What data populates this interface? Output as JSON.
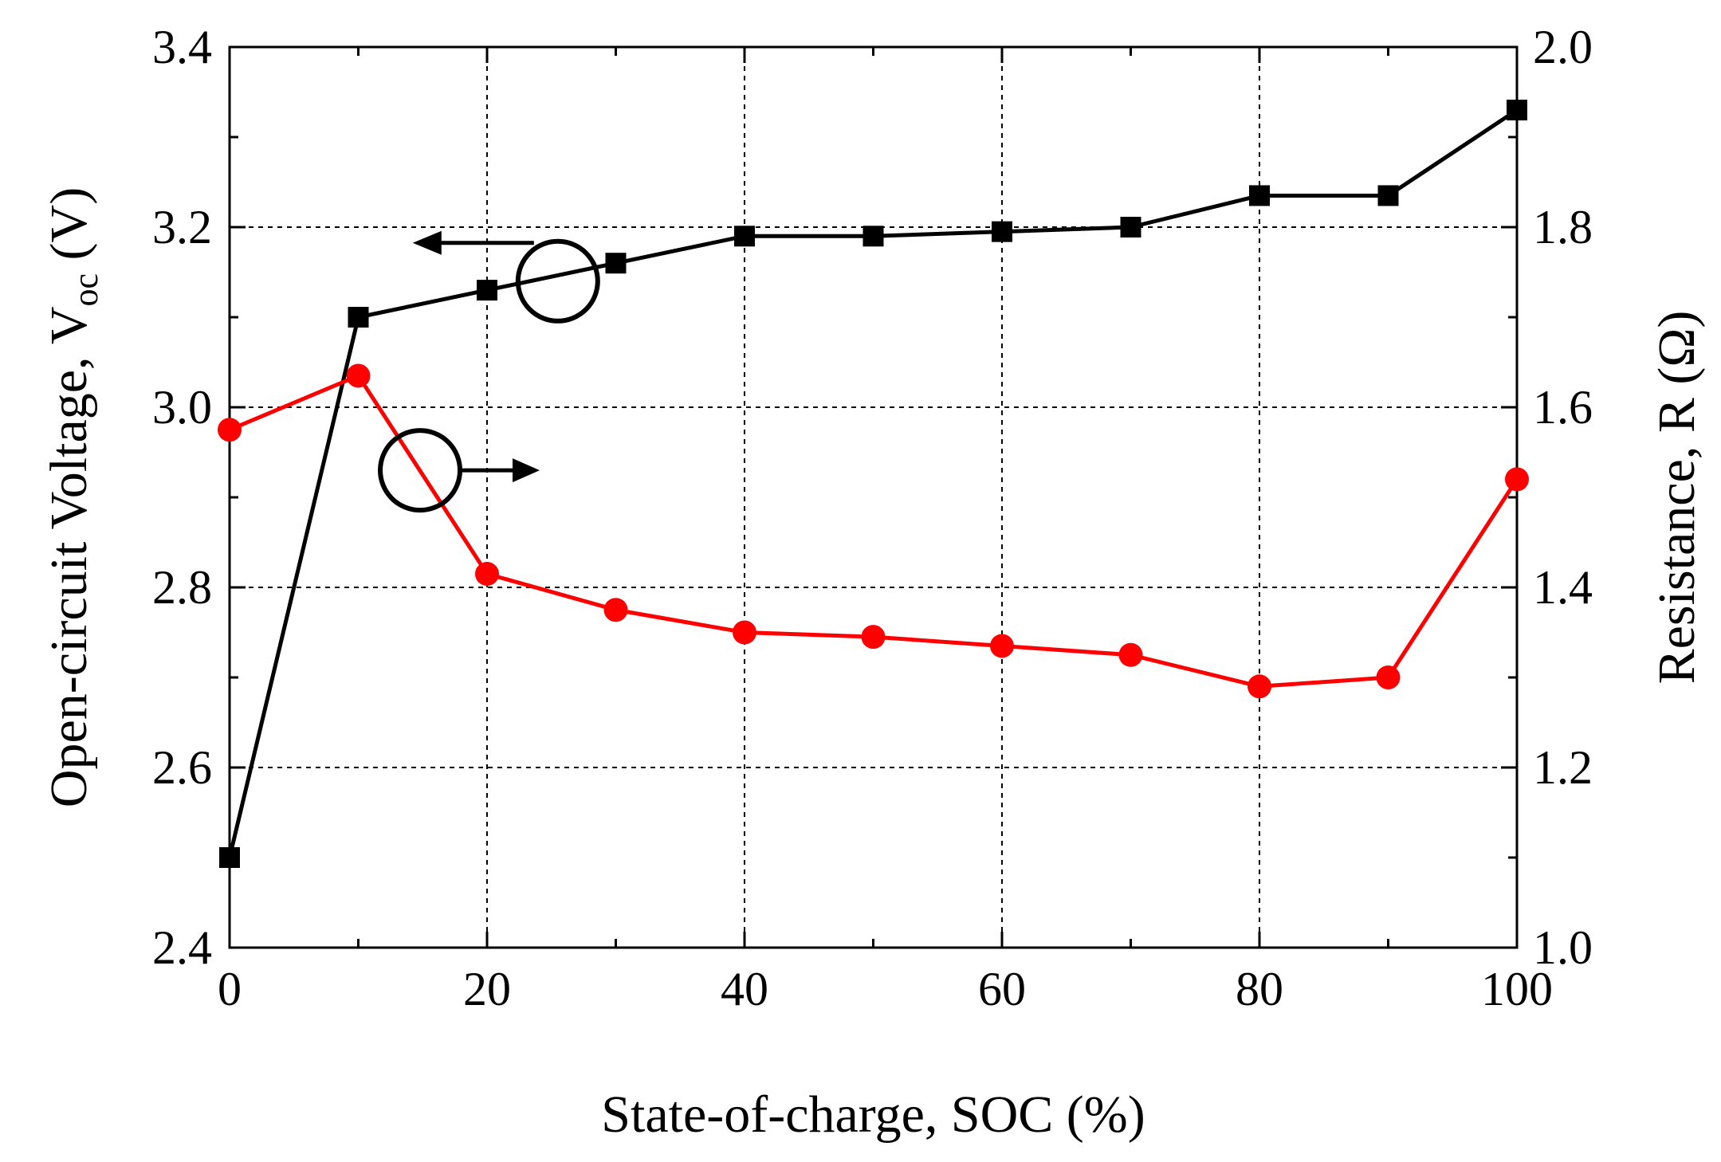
{
  "chart_data": {
    "type": "line",
    "title": "",
    "xlabel": "State-of-charge, SOC (%)",
    "ylabel_left": {
      "main": "Open-circuit Voltage,  V",
      "sub": "oc",
      "unit": " (V)"
    },
    "ylabel_right": "Resistance, R (Ω)",
    "xlim": [
      0,
      100
    ],
    "ylim_left": [
      2.4,
      3.4
    ],
    "ylim_right": [
      1.0,
      2.0
    ],
    "x_ticks": [
      "0",
      "20",
      "40",
      "60",
      "80",
      "100"
    ],
    "y_left_ticks": [
      "2.4",
      "2.6",
      "2.8",
      "3.0",
      "3.2",
      "3.4"
    ],
    "y_right_ticks": [
      "1.0",
      "1.2",
      "1.4",
      "1.6",
      "1.8",
      "2.0"
    ],
    "grid": true,
    "x": [
      0,
      10,
      20,
      30,
      40,
      50,
      60,
      70,
      80,
      90,
      100
    ],
    "series": [
      {
        "name": "Open-circuit Voltage",
        "axis": "left",
        "marker": "square",
        "color": "#000000",
        "values": [
          2.5,
          3.1,
          3.13,
          3.16,
          3.19,
          3.19,
          3.195,
          3.2,
          3.235,
          3.235,
          3.33
        ]
      },
      {
        "name": "Resistance",
        "axis": "right",
        "marker": "circle",
        "color": "#ff0000",
        "values": [
          1.575,
          1.635,
          1.415,
          1.375,
          1.35,
          1.345,
          1.335,
          1.325,
          1.29,
          1.3,
          1.52
        ]
      }
    ],
    "annotations": [
      {
        "marker": "open-circle",
        "arrow": "left",
        "refers_to": "left axis",
        "at_x": 25.5,
        "at_y_left": 3.14
      },
      {
        "marker": "open-circle",
        "arrow": "right",
        "refers_to": "right axis",
        "at_x": 14.8,
        "at_y_right": 1.53
      }
    ]
  }
}
